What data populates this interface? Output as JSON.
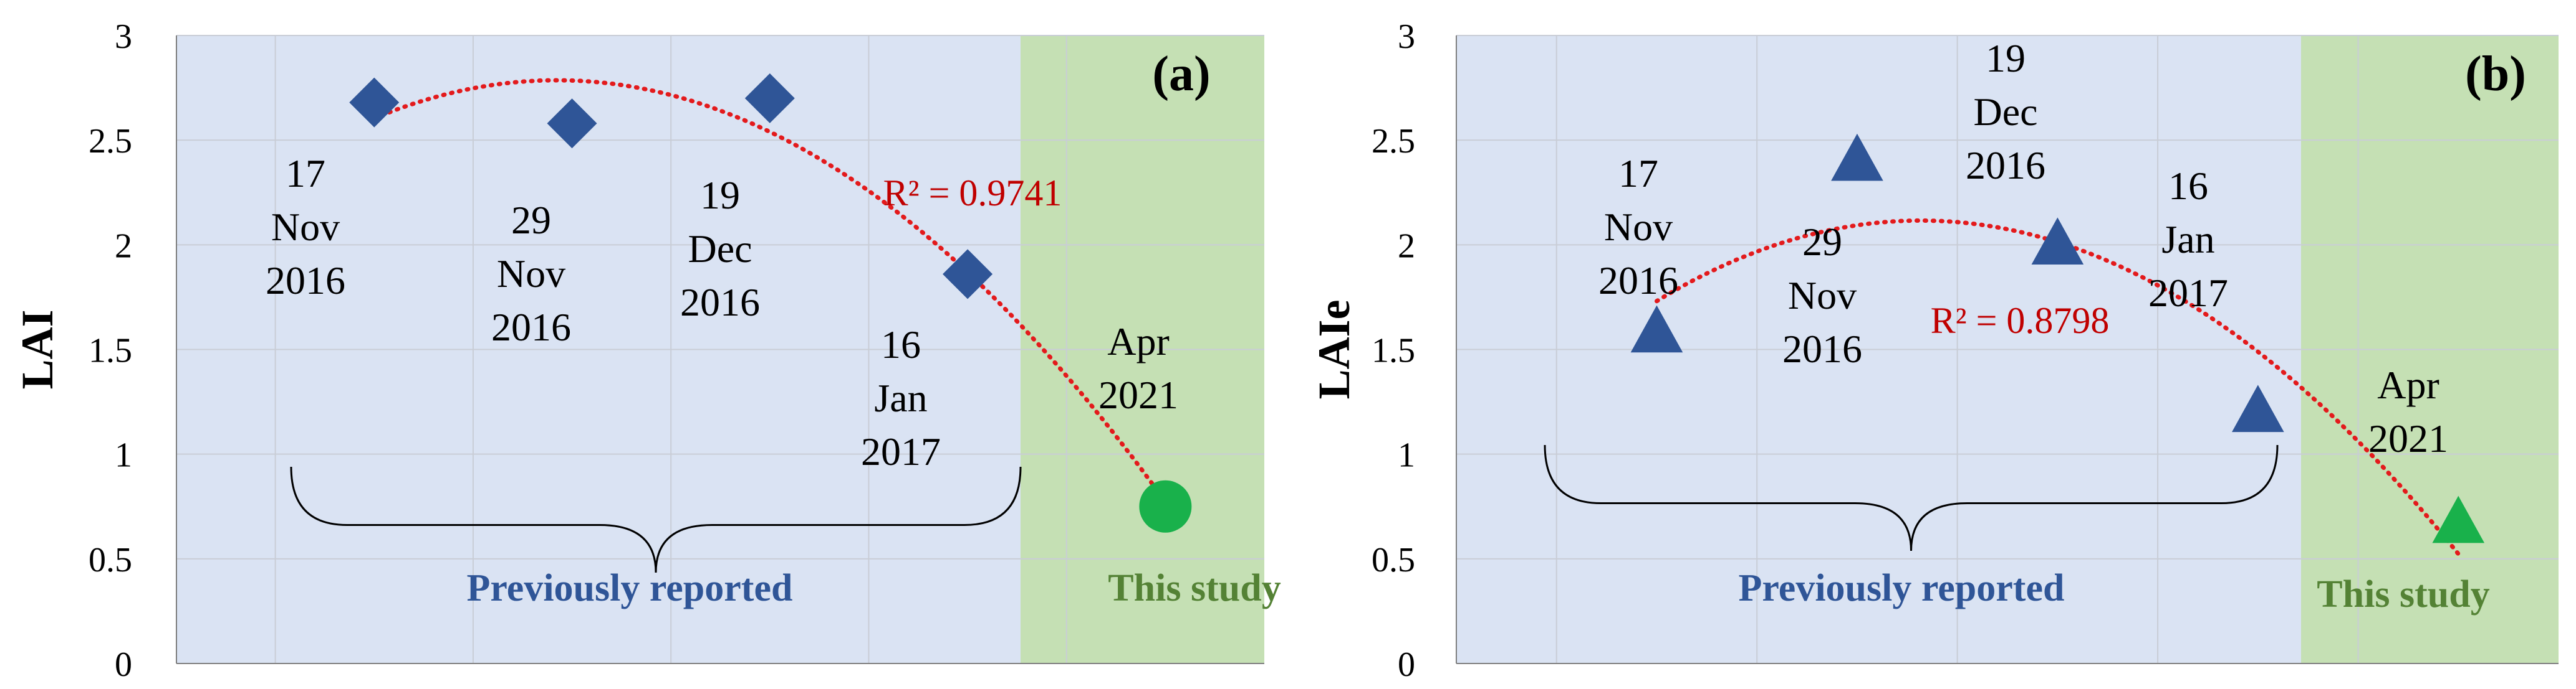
{
  "chart_data": [
    {
      "panel_label": "(a)",
      "type": "scatter",
      "ylabel": "LAI",
      "ylim": [
        0,
        3
      ],
      "yticks": [
        0,
        0.5,
        1,
        1.5,
        2,
        2.5,
        3
      ],
      "ytick_labels": [
        "0",
        "0.5",
        "1",
        "1.5",
        "2",
        "2.5",
        "3"
      ],
      "x_categories": 5,
      "points": [
        {
          "x": 1,
          "y": 2.68,
          "marker": "diamond",
          "color": "#2f5597",
          "label": [
            "17",
            "Nov",
            "2016"
          ]
        },
        {
          "x": 2,
          "y": 2.58,
          "marker": "diamond",
          "color": "#2f5597",
          "label": [
            "29",
            "Nov",
            "2016"
          ]
        },
        {
          "x": 3,
          "y": 2.7,
          "marker": "diamond",
          "color": "#2f5597",
          "label": [
            "19",
            "Dec",
            "2016"
          ]
        },
        {
          "x": 4,
          "y": 1.86,
          "marker": "diamond",
          "color": "#2f5597",
          "label": [
            "16",
            "Jan",
            "2017"
          ]
        },
        {
          "x": 5,
          "y": 0.75,
          "marker": "circle",
          "color": "#19b14b",
          "label": [
            "Apr",
            "2021"
          ]
        }
      ],
      "trendline": {
        "type": "polynomial-2",
        "color": "#e31a1c",
        "r2_text": "R² = 0.9741"
      },
      "region_labels": {
        "previous": "Previously reported",
        "current": "This study"
      },
      "colors": {
        "previous_bg": "#dae3f3",
        "current_bg": "#c5e0b4",
        "previous_text": "#2f5597",
        "current_text": "#548235",
        "r2_text": "#c00000"
      }
    },
    {
      "panel_label": "(b)",
      "type": "scatter",
      "ylabel": "LAIe",
      "ylim": [
        0,
        3
      ],
      "yticks": [
        0,
        0.5,
        1,
        1.5,
        2,
        2.5,
        3
      ],
      "ytick_labels": [
        "0",
        "0.5",
        "1",
        "1.5",
        "2",
        "2.5",
        "3"
      ],
      "x_categories": 5,
      "points": [
        {
          "x": 1,
          "y": 1.58,
          "marker": "triangle",
          "color": "#2f5597",
          "label": [
            "17",
            "Nov",
            "2016"
          ]
        },
        {
          "x": 2,
          "y": 2.4,
          "marker": "triangle",
          "color": "#2f5597",
          "label": [
            "29",
            "Nov",
            "2016"
          ]
        },
        {
          "x": 3,
          "y": 2.0,
          "marker": "triangle",
          "color": "#2f5597",
          "label": [
            "19",
            "Dec",
            "2016"
          ]
        },
        {
          "x": 4,
          "y": 1.2,
          "marker": "triangle",
          "color": "#2f5597",
          "label": [
            "16",
            "Jan",
            "2017"
          ]
        },
        {
          "x": 5,
          "y": 0.67,
          "marker": "triangle",
          "color": "#19b14b",
          "label": [
            "Apr",
            "2021"
          ]
        }
      ],
      "trendline": {
        "type": "polynomial-2",
        "color": "#e31a1c",
        "r2_text": "R² = 0.8798"
      },
      "region_labels": {
        "previous": "Previously reported",
        "current": "This study"
      },
      "colors": {
        "previous_bg": "#dae3f3",
        "current_bg": "#c5e0b4",
        "previous_text": "#2f5597",
        "current_text": "#548235",
        "r2_text": "#c00000"
      }
    }
  ]
}
